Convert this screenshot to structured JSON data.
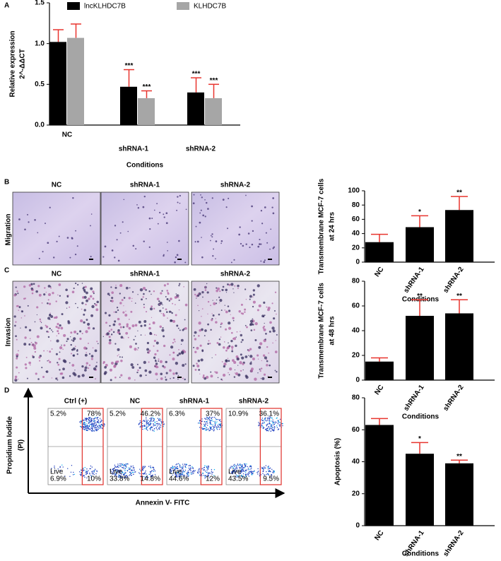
{
  "chart_data": [
    {
      "type": "bar",
      "categories": [
        "NC",
        "shRNA-1",
        "shRNA-2"
      ],
      "series": [
        {
          "name": "lncKLHDC7B",
          "color": "#000000",
          "values": [
            1.02,
            0.47,
            0.4
          ],
          "errors": [
            0.15,
            0.21,
            0.18
          ],
          "significance": [
            null,
            "***",
            "***"
          ]
        },
        {
          "name": "KLHDC7B",
          "color": "#a6a6a6",
          "values": [
            1.07,
            0.33,
            0.33
          ],
          "errors": [
            0.17,
            0.09,
            0.17
          ],
          "significance": [
            null,
            "***",
            "***"
          ]
        }
      ],
      "ylim": [
        0,
        1.5
      ],
      "yticks": [
        {
          "value": 0,
          "label": "0.0"
        },
        {
          "value": 0.5,
          "label": "0.5"
        },
        {
          "value": 1,
          "label": "1.0"
        },
        {
          "value": 1.5,
          "label": "1.5"
        }
      ],
      "y_label": [
        "Relative expression",
        "2^-ΔΔCT"
      ],
      "x_label": "Conditions",
      "error_color": "#e8342e"
    },
    {
      "type": "bar",
      "categories": [
        "NC",
        "shRNA-1",
        "shRNA-2"
      ],
      "color": "#000000",
      "values": [
        28,
        49,
        73
      ],
      "errors": [
        11,
        16,
        19
      ],
      "significance": [
        null,
        "*",
        "**"
      ],
      "ylim": [
        0,
        100
      ],
      "yticks": [
        0,
        20,
        40,
        60,
        80,
        100
      ],
      "y_label": [
        "Transmembrane MCF-7 cells",
        "at 24 hrs"
      ],
      "x_label": "Conditions",
      "error_color": "#e8342e"
    },
    {
      "type": "bar",
      "categories": [
        "NC",
        "shRNA-1",
        "shRNA-2"
      ],
      "color": "#000000",
      "values": [
        15,
        52,
        54
      ],
      "errors": [
        3,
        13,
        11
      ],
      "significance": [
        null,
        "**",
        "**"
      ],
      "ylim": [
        0,
        80
      ],
      "yticks": [
        0,
        20,
        40,
        60,
        80
      ],
      "y_label": [
        "Transmembrane MCF-7 cells",
        "at 48 hrs"
      ],
      "x_label": "Conditions",
      "error_color": "#e8342e"
    },
    {
      "type": "bar",
      "categories": [
        "NC",
        "shRNA-1",
        "shRNA-2"
      ],
      "color": "#000000",
      "values": [
        63,
        45,
        39
      ],
      "errors": [
        4,
        7,
        2
      ],
      "significance": [
        null,
        "*",
        "**"
      ],
      "ylim": [
        0,
        80
      ],
      "yticks": [
        0,
        20,
        40,
        60,
        80
      ],
      "y_label": [
        "Apoptosis (%)"
      ],
      "x_label": "Conditions",
      "error_color": "#e8342e"
    }
  ],
  "figure": {
    "panel_letters": [
      "A",
      "B",
      "C",
      "D"
    ],
    "migration": {
      "row_label": "Migration",
      "titles": [
        "NC",
        "shRNA-1",
        "shRNA-2"
      ]
    },
    "invasion": {
      "row_label": "Invasion",
      "titles": [
        "NC",
        "shRNA-1",
        "shRNA-2"
      ]
    },
    "flow": {
      "y_label": [
        "Propidium  Iodide",
        "(PI)"
      ],
      "x_label": "Annexin V- FITC",
      "live_label": "Live",
      "plots": [
        {
          "title": "Ctrl (+)",
          "quadrants": [
            "5.2%",
            "78%",
            "6.9%",
            "10%"
          ]
        },
        {
          "title": "NC",
          "quadrants": [
            "5.2%",
            "46.2%",
            "33.8%",
            "14.8%"
          ]
        },
        {
          "title": "shRNA-1",
          "quadrants": [
            "6.3%",
            "37%",
            "44.6%",
            "12%"
          ]
        },
        {
          "title": "shRNA-2",
          "quadrants": [
            "10.9%",
            "36.1%",
            "43.5%",
            "9.5%"
          ]
        }
      ]
    }
  }
}
